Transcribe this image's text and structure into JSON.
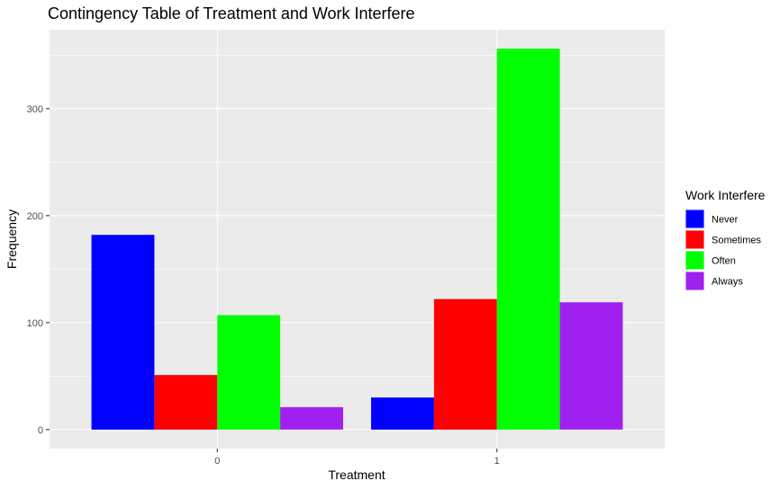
{
  "chart_data": {
    "type": "bar",
    "title": "Contingency Table of Treatment and Work Interfere",
    "xlabel": "Treatment",
    "ylabel": "Frequency",
    "categories": [
      "0",
      "1"
    ],
    "yticks": [
      0,
      100,
      200,
      300
    ],
    "ylim": [
      -17.8,
      373.8
    ],
    "grid": true,
    "legend": {
      "title": "Work Interfere",
      "position": "right"
    },
    "series": [
      {
        "name": "Never",
        "color": "#0000FF",
        "values": [
          182,
          30
        ]
      },
      {
        "name": "Sometimes",
        "color": "#FF0000",
        "values": [
          51,
          122
        ]
      },
      {
        "name": "Often",
        "color": "#00FF00",
        "values": [
          107,
          356
        ]
      },
      {
        "name": "Always",
        "color": "#A020F0",
        "values": [
          21,
          119
        ]
      }
    ]
  }
}
